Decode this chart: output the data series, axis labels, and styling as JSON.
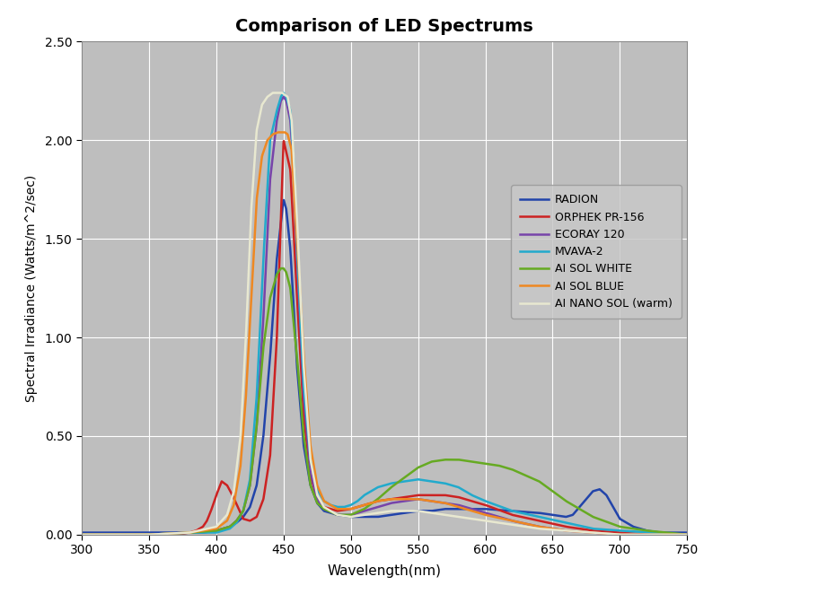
{
  "title": "Comparison of LED Spectrums",
  "xlabel": "Wavelength(nm)",
  "ylabel": "Spectral Irradiance (Watts/m^2/sec)",
  "xlim": [
    300,
    750
  ],
  "ylim": [
    0,
    2.5
  ],
  "yticks": [
    0.0,
    0.5,
    1.0,
    1.5,
    2.0,
    2.5
  ],
  "xticks": [
    300,
    350,
    400,
    450,
    500,
    550,
    600,
    650,
    700,
    750
  ],
  "plot_bg_color": "#BEBEBE",
  "fig_bg_color": "#FFFFFF",
  "grid_color": "#FFFFFF",
  "series": [
    {
      "label": "RADION",
      "color": "#2244AA",
      "linewidth": 1.8,
      "x": [
        300,
        305,
        310,
        320,
        330,
        340,
        350,
        360,
        370,
        380,
        390,
        400,
        410,
        415,
        420,
        425,
        430,
        435,
        440,
        445,
        450,
        452,
        455,
        458,
        460,
        465,
        470,
        475,
        480,
        490,
        500,
        510,
        520,
        530,
        540,
        550,
        560,
        570,
        580,
        590,
        600,
        620,
        640,
        660,
        665,
        670,
        675,
        680,
        685,
        690,
        695,
        700,
        710,
        720,
        730,
        740,
        750
      ],
      "y": [
        0.01,
        0.01,
        0.01,
        0.01,
        0.01,
        0.01,
        0.01,
        0.01,
        0.01,
        0.01,
        0.01,
        0.02,
        0.04,
        0.06,
        0.09,
        0.14,
        0.25,
        0.5,
        0.9,
        1.4,
        1.7,
        1.65,
        1.45,
        1.1,
        0.85,
        0.45,
        0.25,
        0.16,
        0.12,
        0.1,
        0.09,
        0.09,
        0.09,
        0.1,
        0.11,
        0.12,
        0.12,
        0.13,
        0.13,
        0.13,
        0.13,
        0.12,
        0.11,
        0.09,
        0.1,
        0.14,
        0.18,
        0.22,
        0.23,
        0.2,
        0.14,
        0.08,
        0.04,
        0.02,
        0.01,
        0.01,
        0.01
      ]
    },
    {
      "label": "ORPHEK PR-156",
      "color": "#CC2222",
      "linewidth": 1.8,
      "x": [
        300,
        350,
        370,
        380,
        385,
        390,
        393,
        396,
        400,
        404,
        408,
        412,
        416,
        420,
        425,
        430,
        435,
        440,
        445,
        450,
        455,
        460,
        465,
        470,
        475,
        480,
        490,
        500,
        510,
        520,
        530,
        540,
        550,
        560,
        570,
        580,
        590,
        600,
        620,
        640,
        660,
        680,
        700,
        720,
        750
      ],
      "y": [
        0.0,
        0.0,
        0.0,
        0.01,
        0.02,
        0.04,
        0.07,
        0.12,
        0.2,
        0.27,
        0.25,
        0.2,
        0.14,
        0.08,
        0.07,
        0.09,
        0.18,
        0.4,
        1.0,
        2.0,
        1.85,
        1.2,
        0.6,
        0.3,
        0.18,
        0.14,
        0.12,
        0.13,
        0.15,
        0.17,
        0.18,
        0.19,
        0.2,
        0.2,
        0.2,
        0.19,
        0.17,
        0.15,
        0.1,
        0.07,
        0.04,
        0.02,
        0.01,
        0.0,
        0.0
      ]
    },
    {
      "label": "ECORAY 120",
      "color": "#7744AA",
      "linewidth": 1.8,
      "x": [
        300,
        350,
        380,
        400,
        410,
        415,
        420,
        425,
        430,
        435,
        440,
        445,
        448,
        450,
        452,
        455,
        458,
        460,
        465,
        470,
        475,
        480,
        490,
        500,
        510,
        520,
        530,
        540,
        550,
        560,
        570,
        580,
        590,
        600,
        620,
        640,
        660,
        680,
        700,
        750
      ],
      "y": [
        0.0,
        0.0,
        0.01,
        0.02,
        0.04,
        0.07,
        0.12,
        0.25,
        0.55,
        1.1,
        1.8,
        2.1,
        2.2,
        2.22,
        2.2,
        2.1,
        1.8,
        1.4,
        0.7,
        0.32,
        0.18,
        0.13,
        0.1,
        0.1,
        0.12,
        0.14,
        0.16,
        0.17,
        0.18,
        0.17,
        0.16,
        0.15,
        0.13,
        0.11,
        0.07,
        0.04,
        0.02,
        0.01,
        0.0,
        0.0
      ]
    },
    {
      "label": "MVAVA-2",
      "color": "#22AACC",
      "linewidth": 1.8,
      "x": [
        300,
        350,
        380,
        400,
        410,
        415,
        420,
        425,
        430,
        435,
        440,
        445,
        448,
        450,
        452,
        455,
        458,
        460,
        465,
        470,
        475,
        480,
        485,
        490,
        495,
        500,
        505,
        510,
        520,
        530,
        540,
        550,
        560,
        570,
        580,
        590,
        600,
        620,
        640,
        660,
        680,
        700,
        750
      ],
      "y": [
        0.0,
        0.0,
        0.01,
        0.01,
        0.03,
        0.06,
        0.12,
        0.28,
        0.7,
        1.4,
        2.0,
        2.15,
        2.22,
        2.24,
        2.22,
        2.15,
        1.85,
        1.45,
        0.75,
        0.38,
        0.23,
        0.17,
        0.15,
        0.14,
        0.14,
        0.15,
        0.17,
        0.2,
        0.24,
        0.26,
        0.27,
        0.28,
        0.27,
        0.26,
        0.24,
        0.2,
        0.17,
        0.12,
        0.09,
        0.06,
        0.03,
        0.02,
        0.0
      ]
    },
    {
      "label": "AI SOL WHITE",
      "color": "#66AA22",
      "linewidth": 1.8,
      "x": [
        300,
        350,
        380,
        400,
        410,
        415,
        420,
        425,
        430,
        435,
        440,
        445,
        448,
        450,
        452,
        455,
        460,
        465,
        470,
        475,
        480,
        490,
        500,
        510,
        520,
        530,
        540,
        550,
        560,
        570,
        580,
        590,
        600,
        610,
        620,
        630,
        640,
        650,
        660,
        670,
        680,
        700,
        720,
        750
      ],
      "y": [
        0.0,
        0.0,
        0.01,
        0.02,
        0.04,
        0.07,
        0.12,
        0.25,
        0.55,
        0.95,
        1.2,
        1.32,
        1.35,
        1.35,
        1.33,
        1.25,
        0.9,
        0.5,
        0.25,
        0.16,
        0.13,
        0.1,
        0.1,
        0.13,
        0.18,
        0.24,
        0.29,
        0.34,
        0.37,
        0.38,
        0.38,
        0.37,
        0.36,
        0.35,
        0.33,
        0.3,
        0.27,
        0.22,
        0.17,
        0.13,
        0.09,
        0.04,
        0.02,
        0.0
      ]
    },
    {
      "label": "AI SOL BLUE",
      "color": "#EE8822",
      "linewidth": 1.8,
      "x": [
        300,
        350,
        380,
        400,
        408,
        413,
        418,
        422,
        426,
        430,
        434,
        438,
        442,
        446,
        449,
        451,
        453,
        456,
        460,
        465,
        470,
        475,
        480,
        490,
        500,
        510,
        520,
        530,
        540,
        550,
        560,
        570,
        580,
        590,
        600,
        620,
        640,
        660,
        680,
        700,
        750
      ],
      "y": [
        0.0,
        0.0,
        0.01,
        0.03,
        0.07,
        0.15,
        0.35,
        0.7,
        1.2,
        1.7,
        1.92,
        2.0,
        2.03,
        2.04,
        2.04,
        2.04,
        2.03,
        1.95,
        1.5,
        0.9,
        0.45,
        0.25,
        0.17,
        0.13,
        0.13,
        0.15,
        0.17,
        0.18,
        0.18,
        0.18,
        0.17,
        0.16,
        0.14,
        0.12,
        0.1,
        0.07,
        0.04,
        0.02,
        0.01,
        0.0,
        0.0
      ]
    },
    {
      "label": "AI NANO SOL (warm)",
      "color": "#E8E8D0",
      "linewidth": 1.8,
      "x": [
        300,
        350,
        380,
        400,
        408,
        413,
        418,
        422,
        426,
        430,
        434,
        438,
        442,
        446,
        449,
        451,
        453,
        456,
        460,
        465,
        470,
        475,
        480,
        490,
        500,
        510,
        520,
        530,
        540,
        550,
        560,
        570,
        580,
        590,
        600,
        620,
        640,
        660,
        680,
        700,
        750
      ],
      "y": [
        0.0,
        0.0,
        0.01,
        0.04,
        0.1,
        0.22,
        0.5,
        1.0,
        1.65,
        2.05,
        2.18,
        2.22,
        2.24,
        2.24,
        2.24,
        2.23,
        2.22,
        2.1,
        1.6,
        0.85,
        0.38,
        0.2,
        0.14,
        0.1,
        0.09,
        0.1,
        0.11,
        0.12,
        0.12,
        0.12,
        0.11,
        0.1,
        0.09,
        0.08,
        0.07,
        0.05,
        0.03,
        0.02,
        0.01,
        0.0,
        0.0
      ]
    }
  ]
}
